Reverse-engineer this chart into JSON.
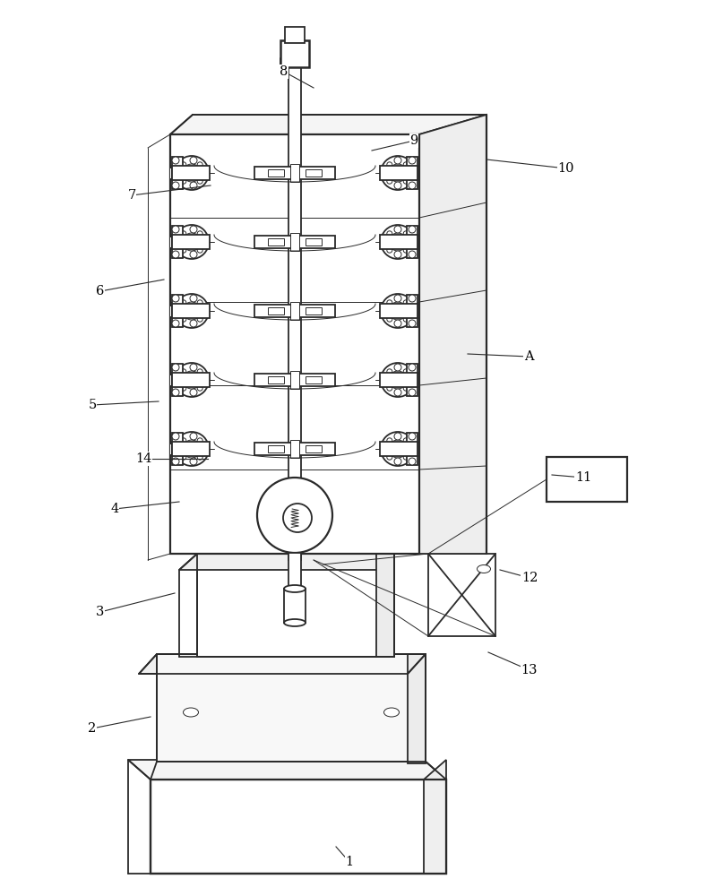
{
  "bg_color": "#ffffff",
  "line_color": "#2a2a2a",
  "lw": 1.3,
  "tlw": 0.7,
  "annotations": [
    [
      "1",
      390,
      962,
      375,
      945
    ],
    [
      "2",
      103,
      813,
      168,
      800
    ],
    [
      "3",
      112,
      683,
      195,
      662
    ],
    [
      "4",
      128,
      568,
      200,
      560
    ],
    [
      "5",
      103,
      452,
      177,
      448
    ],
    [
      "6",
      112,
      325,
      183,
      312
    ],
    [
      "7",
      147,
      218,
      235,
      207
    ],
    [
      "8",
      317,
      80,
      350,
      98
    ],
    [
      "9",
      462,
      157,
      415,
      168
    ],
    [
      "10",
      632,
      188,
      543,
      178
    ],
    [
      "11",
      651,
      533,
      616,
      530
    ],
    [
      "12",
      591,
      645,
      558,
      636
    ],
    [
      "13",
      591,
      748,
      545,
      728
    ],
    [
      "14",
      160,
      512,
      232,
      512
    ],
    [
      "A",
      590,
      398,
      522,
      395
    ]
  ]
}
